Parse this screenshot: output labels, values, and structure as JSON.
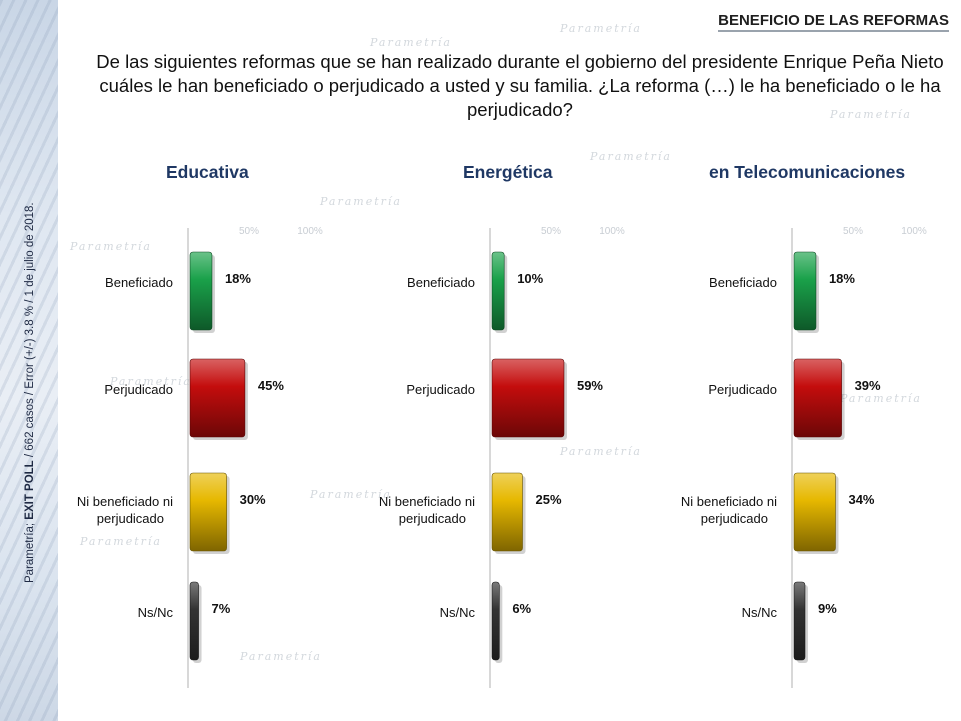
{
  "header_tag": "BENEFICIO DE LAS REFORMAS",
  "question": "De las siguientes reformas que se han realizado durante el gobierno del presidente Enrique Peña Nieto cuáles le han beneficiado o perjudicado a usted y su familia. ¿La reforma (…) le ha beneficiado o le ha perjudicado?",
  "side_note": {
    "prefix": "Parametría; ",
    "bold": "EXIT POLL",
    "suffix": " / 662 casos / Error (+/-) 3.8 % / 1 de julio de 2018."
  },
  "watermark_text": "Parametría",
  "colors": {
    "Beneficiado": "#1aa14a",
    "Perjudicado": "#c40d0d",
    "Ni beneficiado ni perjudicado": "#e6b800",
    "Ns/Nc": "#333333"
  },
  "chart_data": [
    {
      "type": "bar",
      "orientation": "horizontal",
      "title": "Educativa",
      "categories": [
        "Beneficiado",
        "Perjudicado",
        "Ni beneficiado ni perjudicado",
        "Ns/Nc"
      ],
      "values": [
        18,
        45,
        30,
        7
      ],
      "value_labels": [
        "18%",
        "45%",
        "30%",
        "7%"
      ],
      "xlim": [
        0,
        100
      ],
      "ticks": [
        "50%",
        "100%"
      ]
    },
    {
      "type": "bar",
      "orientation": "horizontal",
      "title": "Energética",
      "categories": [
        "Beneficiado",
        "Perjudicado",
        "Ni beneficiado ni perjudicado",
        "Ns/Nc"
      ],
      "values": [
        10,
        59,
        25,
        6
      ],
      "value_labels": [
        "10%",
        "59%",
        "25%",
        "6%"
      ],
      "xlim": [
        0,
        100
      ],
      "ticks": [
        "50%",
        "100%"
      ]
    },
    {
      "type": "bar",
      "orientation": "horizontal",
      "title": "en Telecomunicaciones",
      "categories": [
        "Beneficiado",
        "Perjudicado",
        "Ni beneficiado ni perjudicado",
        "Ns/Nc"
      ],
      "values": [
        18,
        39,
        34,
        9
      ],
      "value_labels": [
        "18%",
        "39%",
        "34%",
        "9%"
      ],
      "xlim": [
        0,
        100
      ],
      "ticks": [
        "50%",
        "100%"
      ]
    }
  ]
}
